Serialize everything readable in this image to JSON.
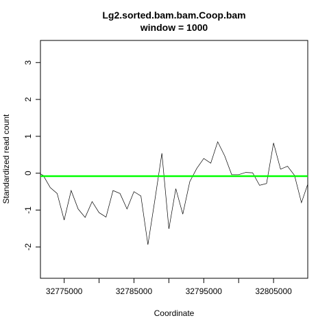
{
  "chart_data": {
    "type": "line",
    "title": "Lg2.sorted.bam.bam.Coop.bam",
    "subtitle": "window = 1000",
    "xlabel": "Coordinate",
    "ylabel": "Standardized read count",
    "xlim": [
      32771600,
      32809900
    ],
    "ylim": [
      -2.85,
      3.6
    ],
    "x_ticks": [
      32770000,
      32775000,
      32780000,
      32785000,
      32790000,
      32795000,
      32800000,
      32805000
    ],
    "x_tick_labels": [
      "32775000",
      "32785000",
      "32795000",
      "32805000"
    ],
    "x_tick_labeled_values": [
      32775000,
      32785000,
      32795000,
      32805000
    ],
    "y_ticks": [
      -2,
      -1,
      0,
      1,
      2,
      3
    ],
    "y_tick_labels": [
      "-2",
      "-1",
      "0",
      "1",
      "2",
      "3"
    ],
    "grid": false,
    "series": [
      {
        "color": "#000000",
        "x": [
          32771600,
          32772000,
          32773000,
          32774000,
          32775000,
          32776000,
          32777000,
          32778000,
          32779000,
          32780000,
          32781000,
          32782000,
          32783000,
          32784000,
          32785000,
          32786000,
          32787000,
          32788000,
          32789000,
          32790000,
          32791000,
          32792000,
          32793000,
          32794000,
          32795000,
          32796000,
          32797000,
          32798000,
          32799000,
          32800000,
          32801000,
          32802000,
          32803000,
          32804000,
          32805000,
          32806000,
          32807000,
          32808000,
          32809000,
          32809900
        ],
        "y": [
          -0.02,
          -0.06,
          -0.39,
          -0.55,
          -1.27,
          -0.47,
          -0.97,
          -1.2,
          -0.77,
          -1.07,
          -1.19,
          -0.47,
          -0.55,
          -0.97,
          -0.5,
          -0.62,
          -1.94,
          -0.72,
          0.54,
          -1.51,
          -0.42,
          -1.11,
          -0.23,
          0.13,
          0.4,
          0.27,
          0.85,
          0.47,
          -0.04,
          -0.04,
          0.02,
          0.01,
          -0.33,
          -0.28,
          0.82,
          0.11,
          0.19,
          -0.06,
          -0.8,
          -0.3
        ]
      }
    ],
    "reference_line": {
      "y": -0.08,
      "color": "#00ff00"
    }
  }
}
